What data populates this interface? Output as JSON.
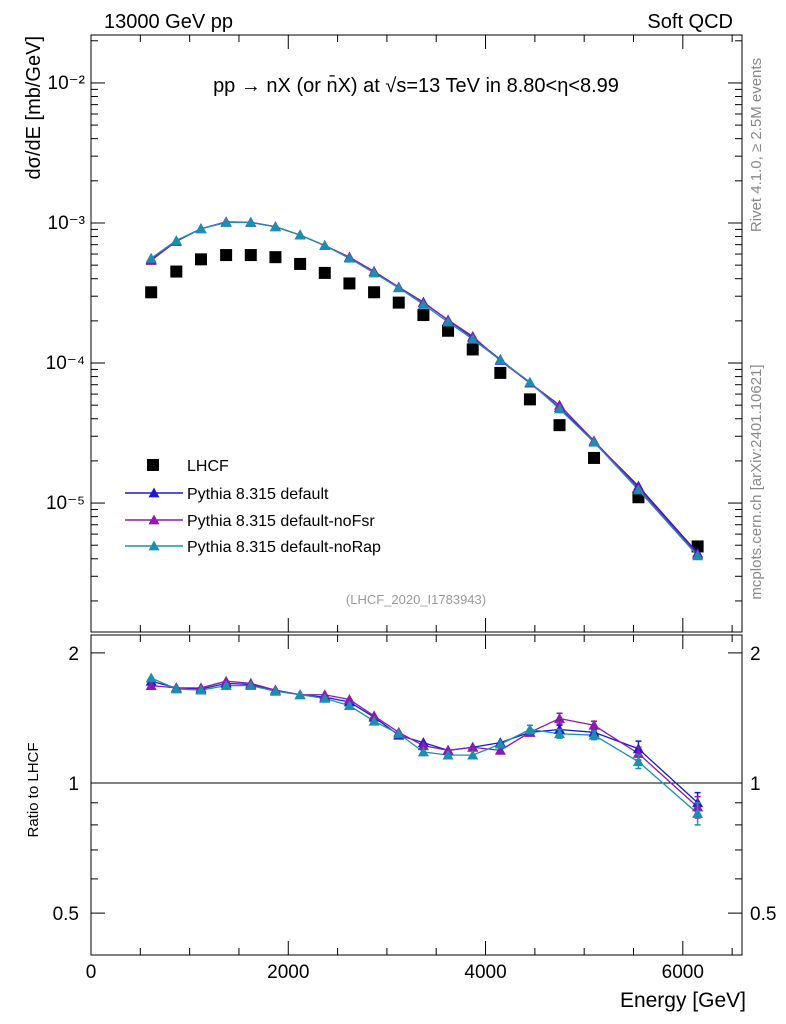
{
  "header": {
    "left": "13000 GeV pp",
    "right": "Soft QCD"
  },
  "side_labels": {
    "rivet": "Rivet 4.1.0, ≥ 2.5M events",
    "mcplots": "mcplots.cern.ch [arXiv:2401.10621]"
  },
  "colors": {
    "data": "#000000",
    "default": "#1a1ad0",
    "noFsr": "#8a1ab0",
    "noRap": "#1a8fb0",
    "axis": "#000000",
    "analysis_label": "#999999"
  },
  "chart_data": [
    {
      "type": "scatter",
      "panel": "main",
      "title": "pp → nX (or n̄X) at √s=13 TeV in 8.80<η<8.99",
      "ylabel": "dσ/dE [mb/GeV]",
      "analysis_label": "(LHCF_2020_I1783943)",
      "yscale": "log",
      "xlim": [
        0,
        6600
      ],
      "ylim": [
        1.2e-06,
        0.022
      ],
      "y_tick_labels": [
        "10⁻⁵",
        "10⁻⁴",
        "10⁻³",
        "10⁻²"
      ],
      "y_tick_values": [
        1e-05,
        0.0001,
        0.001,
        0.01
      ],
      "legend_position": "bottom-left",
      "x": [
        610,
        865,
        1115,
        1370,
        1620,
        1870,
        2120,
        2370,
        2620,
        2870,
        3120,
        3370,
        3620,
        3870,
        4150,
        4450,
        4750,
        5100,
        5550,
        6150
      ],
      "series": [
        {
          "name": "LHCF",
          "marker": "square",
          "values": [
            0.00032,
            0.00045,
            0.00055,
            0.00059,
            0.00059,
            0.00057,
            0.00051,
            0.00044,
            0.00037,
            0.00032,
            0.00027,
            0.00022,
            0.00017,
            0.000125,
            8.5e-05,
            5.5e-05,
            3.6e-05,
            2.1e-05,
            1.1e-05,
            4.9e-06
          ]
        },
        {
          "name": "Pythia 8.315 default",
          "marker": "triangle",
          "values": [
            0.00055,
            0.00074,
            0.00091,
            0.00101,
            0.00101,
            0.00094,
            0.00082,
            0.00069,
            0.00057,
            0.00045,
            0.000348,
            0.000272,
            0.000202,
            0.000152,
            0.000106,
            7.2e-05,
            4.8e-05,
            2.75e-05,
            1.32e-05,
            4.4e-06
          ]
        },
        {
          "name": "Pythia 8.315 default-noFsr",
          "marker": "triangle",
          "values": [
            0.00054,
            0.00074,
            0.00091,
            0.00102,
            0.00101,
            0.00094,
            0.00082,
            0.00069,
            0.00057,
            0.00045,
            0.000348,
            0.00027,
            0.000203,
            0.000155,
            0.000104,
            7.2e-05,
            5e-05,
            2.78e-05,
            1.28e-05,
            4.3e-06
          ]
        },
        {
          "name": "Pythia 8.315 default-noRap",
          "marker": "triangle",
          "values": [
            0.00056,
            0.00075,
            0.00091,
            0.00101,
            0.00101,
            0.00094,
            0.00082,
            0.00069,
            0.00056,
            0.00044,
            0.000344,
            0.000262,
            0.000196,
            0.000148,
            0.000105,
            7.3e-05,
            4.7e-05,
            2.72e-05,
            1.24e-05,
            4.2e-06
          ]
        }
      ]
    },
    {
      "type": "line",
      "panel": "ratio",
      "ylabel": "Ratio to LHCF",
      "xlabel": "Energy [GeV]",
      "xlim": [
        0,
        6600
      ],
      "ylim": [
        0.4,
        2.2
      ],
      "x_tick_labels": [
        "0",
        "2000",
        "4000",
        "6000"
      ],
      "x_tick_values": [
        0,
        2000,
        4000,
        6000
      ],
      "y_tick_labels": [
        "0.5",
        "1",
        "2"
      ],
      "y_tick_values": [
        0.5,
        1,
        2
      ],
      "reference_line": 1,
      "x": [
        610,
        865,
        1115,
        1370,
        1620,
        1870,
        2120,
        2370,
        2620,
        2870,
        3120,
        3370,
        3620,
        3870,
        4150,
        4450,
        4750,
        5100,
        5550,
        6150
      ],
      "series": [
        {
          "name": "Pythia 8.315 default",
          "values": [
            1.72,
            1.66,
            1.65,
            1.7,
            1.69,
            1.64,
            1.6,
            1.58,
            1.54,
            1.42,
            1.29,
            1.24,
            1.19,
            1.21,
            1.24,
            1.31,
            1.33,
            1.31,
            1.2,
            0.9
          ],
          "errors": [
            0,
            0,
            0,
            0,
            0,
            0,
            0,
            0,
            0,
            0,
            0,
            0,
            0,
            0,
            0,
            0.02,
            0.03,
            0.03,
            0.05,
            0.05
          ]
        },
        {
          "name": "Pythia 8.315 default-noFsr",
          "values": [
            1.68,
            1.66,
            1.66,
            1.72,
            1.7,
            1.64,
            1.6,
            1.6,
            1.56,
            1.43,
            1.31,
            1.22,
            1.19,
            1.21,
            1.19,
            1.31,
            1.41,
            1.36,
            1.17,
            0.88
          ],
          "errors": [
            0,
            0,
            0,
            0,
            0,
            0,
            0,
            0,
            0,
            0,
            0,
            0,
            0,
            0,
            0,
            0.02,
            0.04,
            0.03,
            0.04,
            0.05
          ]
        },
        {
          "name": "Pythia 8.315 default-noRap",
          "values": [
            1.75,
            1.65,
            1.64,
            1.68,
            1.68,
            1.63,
            1.6,
            1.57,
            1.51,
            1.39,
            1.3,
            1.18,
            1.16,
            1.16,
            1.23,
            1.33,
            1.3,
            1.29,
            1.12,
            0.85
          ],
          "errors": [
            0,
            0,
            0,
            0,
            0,
            0,
            0,
            0,
            0,
            0,
            0,
            0,
            0,
            0,
            0,
            0.03,
            0.03,
            0.03,
            0.04,
            0.05
          ]
        }
      ]
    }
  ]
}
